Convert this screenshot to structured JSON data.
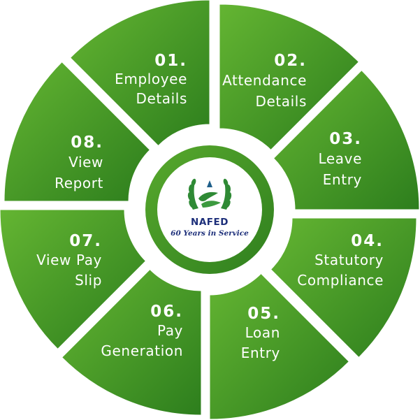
{
  "segments": [
    {
      "number": "01.",
      "lines": [
        "Employee",
        "Details"
      ]
    },
    {
      "number": "02.",
      "lines": [
        "Attendance",
        "Details"
      ]
    },
    {
      "number": "03.",
      "lines": [
        "Leave",
        "Entry"
      ]
    },
    {
      "number": "04.",
      "lines": [
        "Statutory",
        "Compliance"
      ]
    },
    {
      "number": "05.",
      "lines": [
        "Loan",
        "Entry"
      ]
    },
    {
      "number": "06.",
      "lines": [
        "Pay",
        "Generation"
      ]
    },
    {
      "number": "07.",
      "lines": [
        "View Pay",
        "Slip"
      ]
    },
    {
      "number": "08.",
      "lines": [
        "View",
        "Report"
      ]
    }
  ],
  "logo": {
    "title": "NAFED",
    "tagline": "60 Years in Service"
  },
  "colors": {
    "green_light": "#5fb130",
    "green_dark": "#2c7d1c",
    "ring": "#3f9326",
    "logo_text": "#1d2f7a",
    "logo_emblem": "#2f8a35"
  }
}
